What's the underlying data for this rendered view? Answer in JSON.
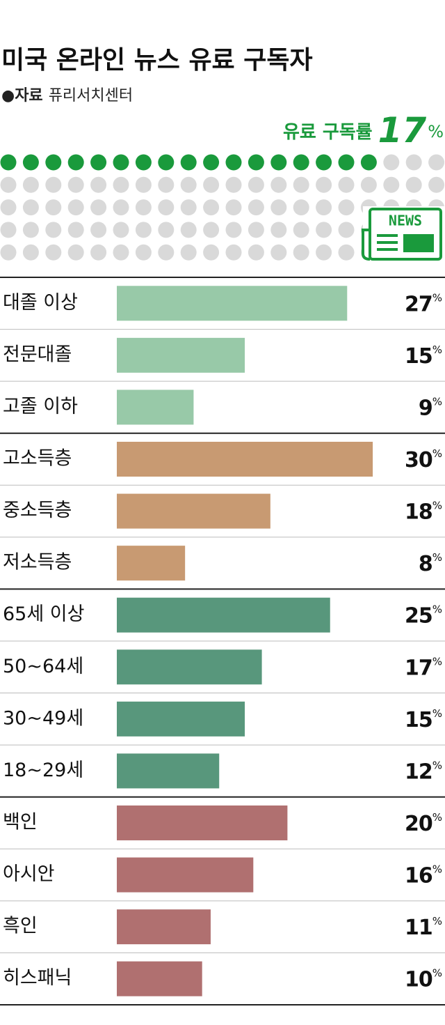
{
  "chart_data": {
    "type": "bar",
    "title": "미국 온라인 뉴스 유료 구독자",
    "source_label": "●자료",
    "source": "퓨리서치센터",
    "headline": {
      "label": "유료 구독률",
      "value": 17,
      "unit": "%",
      "color": "#1a9a3c",
      "total": 100
    },
    "icon_text": "NEWS",
    "unit": "%",
    "groups": [
      {
        "color": "#98c9a8",
        "categories": [
          "대졸 이상",
          "전문대졸",
          "고졸 이하"
        ],
        "values": [
          27,
          15,
          9
        ]
      },
      {
        "color": "#c89a72",
        "categories": [
          "고소득층",
          "중소득층",
          "저소득층"
        ],
        "values": [
          30,
          18,
          8
        ]
      },
      {
        "color": "#58977c",
        "categories": [
          "65세 이상",
          "50~64세",
          "30~49세",
          "18~29세"
        ],
        "values": [
          25,
          17,
          15,
          12
        ]
      },
      {
        "color": "#b07070",
        "categories": [
          "백인",
          "아시안",
          "흑인",
          "히스패닉"
        ],
        "values": [
          20,
          16,
          11,
          10
        ]
      }
    ]
  }
}
